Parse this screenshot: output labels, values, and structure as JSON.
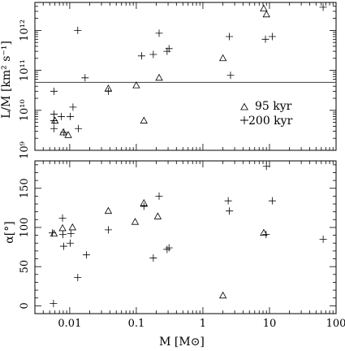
{
  "colors": {
    "ink": "#000000",
    "refline": "#555555",
    "background": "#ffffff"
  },
  "chart_data": [
    {
      "type": "scatter",
      "panel": "luminosity-to-mass",
      "xscale": "log",
      "yscale": "log",
      "xlim": [
        0.003,
        100
      ],
      "ylim": [
        1000000000.0,
        5000000000000.0
      ],
      "ylabel": "L/M  [km² s⁻¹]",
      "yticks": [
        {
          "value": 1000000000.0,
          "label": "10⁹"
        },
        {
          "value": 10000000000.0,
          "label": "10¹⁰"
        },
        {
          "value": 100000000000.0,
          "label": "10¹¹"
        },
        {
          "value": 1000000000000.0,
          "label": "10¹²"
        }
      ],
      "reference_line": 50000000000.0,
      "legend": {
        "placement": "right-middle",
        "entries": [
          "95 kyr",
          "200 kyr"
        ]
      },
      "series": [
        {
          "name": "95 kyr",
          "marker": "triangle",
          "points": [
            [
              0.006,
              5500000000.0
            ],
            [
              0.008,
              2800000000.0
            ],
            [
              0.0095,
              2400000000.0
            ],
            [
              0.038,
              35000000000.0
            ],
            [
              0.1,
              42000000000.0
            ],
            [
              0.13,
              5500000000.0
            ],
            [
              0.22,
              65000000000.0
            ],
            [
              2.0,
              200000000000.0
            ],
            [
              8.2,
              3500000000000.0
            ],
            [
              9.0,
              2500000000000.0
            ]
          ]
        },
        {
          "name": "200 kyr",
          "marker": "plus",
          "points": [
            [
              0.0058,
              30000000000.0
            ],
            [
              0.0058,
              8000000000.0
            ],
            [
              0.0058,
              5500000000.0
            ],
            [
              0.0058,
              3500000000.0
            ],
            [
              0.0075,
              7000000000.0
            ],
            [
              0.0082,
              2800000000.0
            ],
            [
              0.0102,
              7000000000.0
            ],
            [
              0.0112,
              12000000000.0
            ],
            [
              0.0132,
              1000000000000.0
            ],
            [
              0.0135,
              3500000000.0
            ],
            [
              0.017,
              65000000000.0
            ],
            [
              0.038,
              30000000000.0
            ],
            [
              0.12,
              230000000000.0
            ],
            [
              0.18,
              250000000000.0
            ],
            [
              0.22,
              850000000000.0
            ],
            [
              0.29,
              300000000000.0
            ],
            [
              0.31,
              350000000000.0
            ],
            [
              2.5,
              700000000000.0
            ],
            [
              2.6,
              75000000000.0
            ],
            [
              8.7,
              600000000000.0
            ],
            [
              11.0,
              700000000000.0
            ],
            [
              64.0,
              3800000000000.0
            ]
          ]
        }
      ]
    },
    {
      "type": "scatter",
      "panel": "angle",
      "xscale": "log",
      "xlim": [
        0.003,
        100
      ],
      "ylim": [
        -10,
        185
      ],
      "xlabel": "M  [M⊙]",
      "ylabel": "α[°]",
      "yticks": [
        {
          "value": 0,
          "label": "0"
        },
        {
          "value": 50,
          "label": "50"
        },
        {
          "value": 100,
          "label": "100"
        },
        {
          "value": 150,
          "label": "150"
        }
      ],
      "xticks": [
        {
          "value": 0.01,
          "label": "0.01"
        },
        {
          "value": 0.1,
          "label": "0.1"
        },
        {
          "value": 1,
          "label": "1"
        },
        {
          "value": 10,
          "label": "10"
        },
        {
          "value": 100,
          "label": "100"
        }
      ],
      "series": [
        {
          "name": "95 kyr",
          "marker": "triangle",
          "points": [
            [
              0.0058,
              92
            ],
            [
              0.0078,
              99
            ],
            [
              0.011,
              100
            ],
            [
              0.038,
              121
            ],
            [
              0.096,
              107
            ],
            [
              0.13,
              131
            ],
            [
              0.21,
              114
            ],
            [
              2.0,
              13
            ],
            [
              8.2,
              93
            ]
          ]
        },
        {
          "name": "200 kyr",
          "marker": "plus",
          "points": [
            [
              0.0055,
              93
            ],
            [
              0.0057,
              3
            ],
            [
              0.0078,
              112
            ],
            [
              0.0079,
              91
            ],
            [
              0.0081,
              76
            ],
            [
              0.0102,
              80
            ],
            [
              0.0104,
              92
            ],
            [
              0.0132,
              36
            ],
            [
              0.0178,
              65
            ],
            [
              0.038,
              97
            ],
            [
              0.13,
              127
            ],
            [
              0.18,
              61
            ],
            [
              0.22,
              140
            ],
            [
              0.29,
              72
            ],
            [
              0.31,
              74
            ],
            [
              2.4,
              134
            ],
            [
              2.5,
              121
            ],
            [
              8.9,
              91
            ],
            [
              9.0,
              178
            ],
            [
              11.0,
              134
            ],
            [
              64.0,
              85
            ]
          ]
        }
      ]
    }
  ]
}
